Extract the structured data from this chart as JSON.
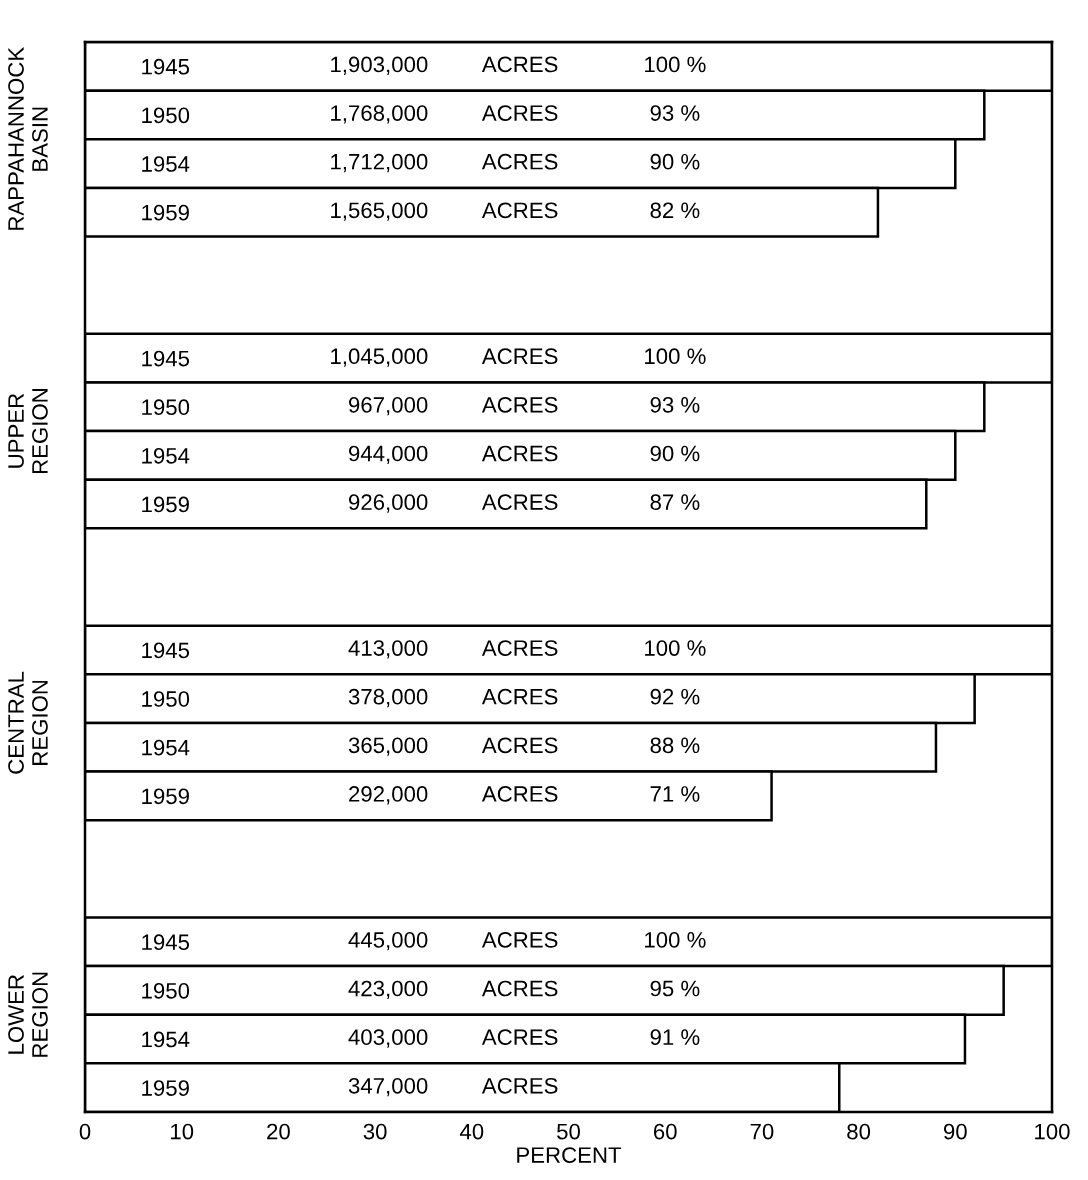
{
  "chart_data": {
    "type": "bar",
    "orientation": "horizontal",
    "xlabel": "PERCENT",
    "categories": [
      "1945",
      "1950",
      "1954",
      "1959",
      null,
      null,
      "1945",
      "1950",
      "1954",
      "1959",
      null,
      null,
      "1945",
      "1950",
      "1954",
      "1959",
      null,
      null,
      "1945",
      "1950",
      "1954",
      "1959"
    ],
    "values": [
      100,
      93,
      90,
      82,
      null,
      null,
      100,
      93,
      90,
      87,
      null,
      null,
      100,
      92,
      88,
      71,
      null,
      null,
      100,
      95,
      91,
      78
    ],
    "value_labels": [
      "100 %",
      "93 %",
      "90 %",
      "82 %",
      null,
      null,
      "100 %",
      "93 %",
      "90 %",
      "87 %",
      null,
      null,
      "100 %",
      "92 %",
      "88 %",
      "71 %",
      null,
      null,
      "100 %",
      "95 %",
      "91 %",
      null
    ],
    "color": "#ffffff",
    "xlim": [
      0,
      100
    ],
    "xticks": [
      0,
      10,
      20,
      30,
      40,
      50,
      60,
      70,
      80,
      90,
      100
    ],
    "grid": false,
    "legend": false,
    "annotations": [
      "RAPPAHANNOCK\nBASIN",
      "UPPER\nREGION",
      "CENTRAL\nREGION",
      "LOWER\nREGION",
      "1,903,000",
      "1,768,000",
      "1,712,000",
      "1,565,000",
      "1,045,000",
      "967,000",
      "944,000",
      "926,000",
      "413,000",
      "378,000",
      "365,000",
      "292,000",
      "445,000",
      "423,000",
      "403,000",
      "347,000",
      "ACRES",
      "ACRES",
      "ACRES",
      "ACRES",
      "ACRES",
      "ACRES",
      "ACRES",
      "ACRES",
      "ACRES",
      "ACRES",
      "ACRES",
      "ACRES",
      "ACRES",
      "ACRES",
      "ACRES",
      "ACRES"
    ]
  }
}
